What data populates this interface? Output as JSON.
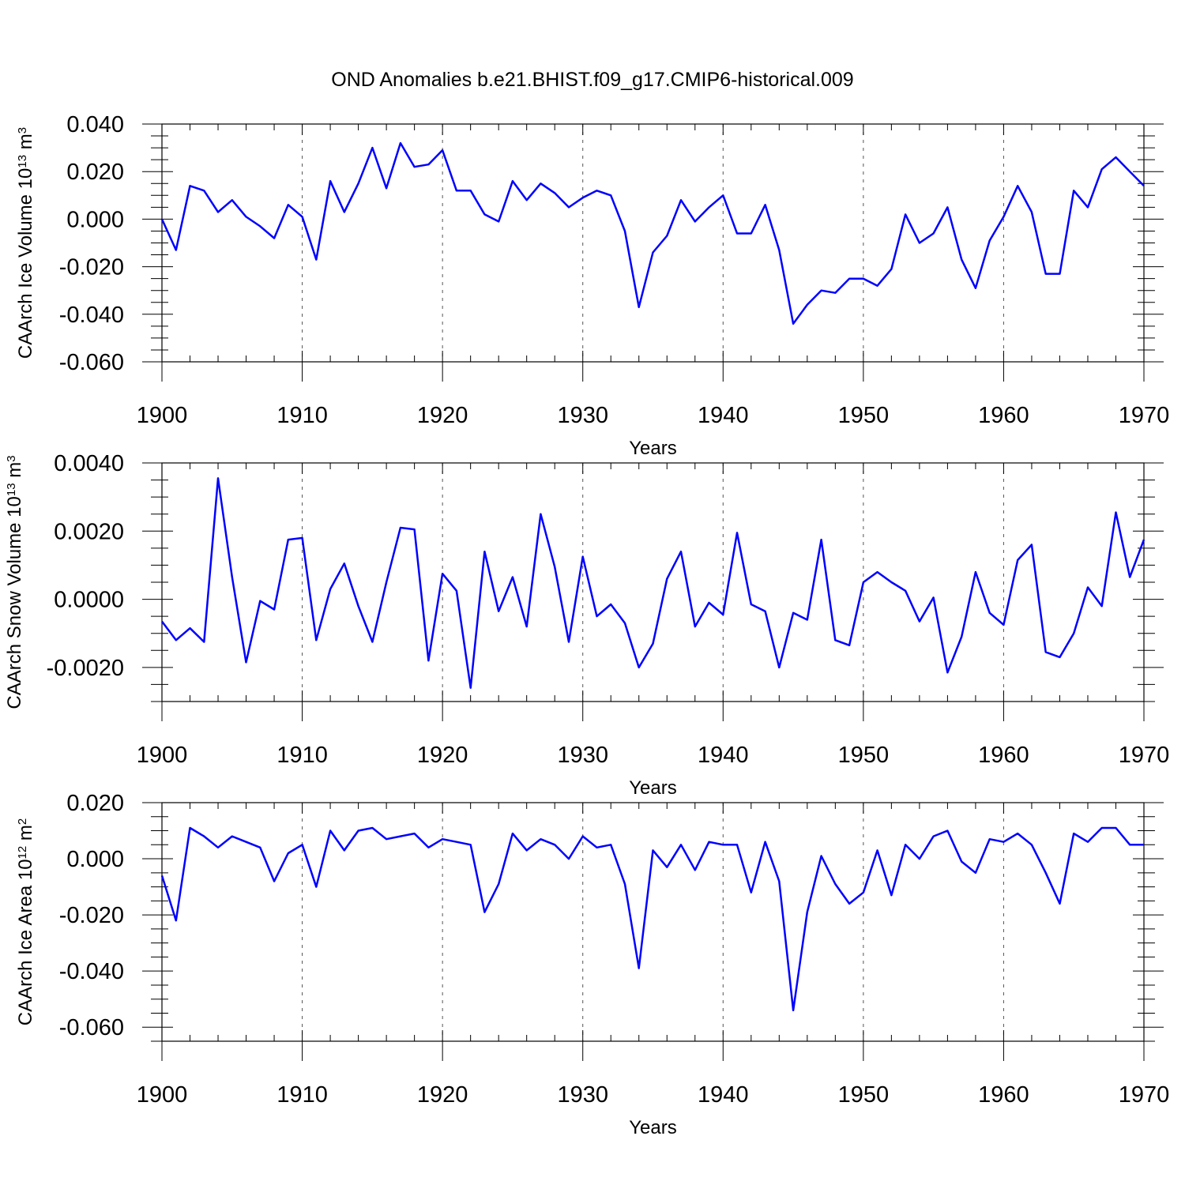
{
  "title": "OND Anomalies b.e21.BHIST.f09_g17.CMIP6-historical.009",
  "colors": {
    "series": "#0000ff",
    "frame": "#000000",
    "grid": "#555555"
  },
  "chart_data": [
    {
      "type": "line",
      "id": "ice-volume",
      "ylabel_main": "CAArch Ice Volume 10",
      "ylabel_exp": "13",
      "ylabel_unit": " m",
      "ylabel_unit_exp": "3",
      "xlabel": "Years",
      "xlim": [
        1900,
        1970
      ],
      "ylim": [
        -0.06,
        0.04
      ],
      "yticks": [
        0.04,
        0.02,
        0.0,
        -0.02,
        -0.04,
        -0.06
      ],
      "ytick_labels": [
        "0.040",
        "0.020",
        "0.000",
        "-0.020",
        "-0.040",
        "-0.060"
      ],
      "yminor_step": 0.005,
      "xticks": [
        1900,
        1910,
        1920,
        1930,
        1940,
        1950,
        1960,
        1970
      ],
      "xtick_labels": [
        "1900",
        "1910",
        "1920",
        "1930",
        "1940",
        "1950",
        "1960",
        "1970"
      ],
      "grid_x": [
        1910,
        1920,
        1930,
        1940,
        1950,
        1960
      ],
      "x_start": 1900,
      "values": [
        0.0,
        -0.013,
        0.014,
        0.012,
        0.003,
        0.008,
        0.001,
        -0.003,
        -0.008,
        0.006,
        0.001,
        -0.017,
        0.016,
        0.003,
        0.015,
        0.03,
        0.013,
        0.032,
        0.022,
        0.023,
        0.029,
        0.012,
        0.012,
        0.002,
        -0.001,
        0.016,
        0.008,
        0.015,
        0.011,
        0.005,
        0.009,
        0.012,
        0.01,
        -0.005,
        -0.037,
        -0.014,
        -0.007,
        0.008,
        -0.001,
        0.005,
        0.01,
        -0.006,
        -0.006,
        0.006,
        -0.013,
        -0.044,
        -0.036,
        -0.03,
        -0.031,
        -0.025,
        -0.025,
        -0.028,
        -0.021,
        0.002,
        -0.01,
        -0.006,
        0.005,
        -0.017,
        -0.029,
        -0.009,
        0.001,
        0.014,
        0.003,
        -0.023,
        -0.023,
        0.012,
        0.005,
        0.021,
        0.026,
        0.02,
        0.014
      ]
    },
    {
      "type": "line",
      "id": "snow-volume",
      "ylabel_main": "CAArch Snow Volume 10",
      "ylabel_exp": "13",
      "ylabel_unit": " m",
      "ylabel_unit_exp": "3",
      "xlabel": "Years",
      "xlim": [
        1900,
        1970
      ],
      "ylim": [
        -0.003,
        0.004
      ],
      "yticks": [
        0.004,
        0.002,
        0.0,
        -0.002
      ],
      "ytick_labels": [
        "0.0040",
        "0.0020",
        "0.0000",
        "-0.0020"
      ],
      "yminor_step": 0.0005,
      "xticks": [
        1900,
        1910,
        1920,
        1930,
        1940,
        1950,
        1960,
        1970
      ],
      "xtick_labels": [
        "1900",
        "1910",
        "1920",
        "1930",
        "1940",
        "1950",
        "1960",
        "1970"
      ],
      "grid_x": [
        1910,
        1920,
        1930,
        1940,
        1950,
        1960
      ],
      "x_start": 1900,
      "values": [
        -0.00065,
        -0.0012,
        -0.00085,
        -0.00125,
        0.00355,
        0.00065,
        -0.00185,
        -5e-05,
        -0.0003,
        0.00175,
        0.0018,
        -0.0012,
        0.0003,
        0.00105,
        -0.0002,
        -0.00125,
        0.0005,
        0.0021,
        0.00205,
        -0.0018,
        0.00075,
        0.00025,
        -0.0026,
        0.0014,
        -0.00035,
        0.00065,
        -0.0008,
        0.0025,
        0.00095,
        -0.00125,
        0.00125,
        -0.0005,
        -0.00015,
        -0.0007,
        -0.002,
        -0.0013,
        0.0006,
        0.0014,
        -0.0008,
        -0.0001,
        -0.00045,
        0.00195,
        -0.00015,
        -0.00035,
        -0.002,
        -0.0004,
        -0.0006,
        0.00175,
        -0.0012,
        -0.00135,
        0.0005,
        0.0008,
        0.0005,
        0.00025,
        -0.00065,
        5e-05,
        -0.00215,
        -0.0011,
        0.0008,
        -0.0004,
        -0.00075,
        0.00115,
        0.0016,
        -0.00155,
        -0.0017,
        -0.001,
        0.00035,
        -0.0002,
        0.00255,
        0.00065,
        0.00175
      ]
    },
    {
      "type": "line",
      "id": "ice-area",
      "ylabel_main": "CAArch Ice Area 10",
      "ylabel_exp": "12",
      "ylabel_unit": " m",
      "ylabel_unit_exp": "2",
      "xlabel": "Years",
      "xlim": [
        1900,
        1970
      ],
      "ylim": [
        -0.065,
        0.02
      ],
      "yticks": [
        0.02,
        0.0,
        -0.02,
        -0.04,
        -0.06
      ],
      "ytick_labels": [
        "0.020",
        "0.000",
        "-0.020",
        "-0.040",
        "-0.060"
      ],
      "yminor_step": 0.005,
      "xticks": [
        1900,
        1910,
        1920,
        1930,
        1940,
        1950,
        1960,
        1970
      ],
      "xtick_labels": [
        "1900",
        "1910",
        "1920",
        "1930",
        "1940",
        "1950",
        "1960",
        "1970"
      ],
      "grid_x": [
        1910,
        1920,
        1930,
        1940,
        1950,
        1960
      ],
      "x_start": 1900,
      "values": [
        -0.006,
        -0.022,
        0.011,
        0.008,
        0.004,
        0.008,
        0.006,
        0.004,
        -0.008,
        0.002,
        0.005,
        -0.01,
        0.01,
        0.003,
        0.01,
        0.011,
        0.007,
        0.008,
        0.009,
        0.004,
        0.007,
        0.006,
        0.005,
        -0.019,
        -0.009,
        0.009,
        0.003,
        0.007,
        0.005,
        0.0,
        0.008,
        0.004,
        0.005,
        -0.009,
        -0.039,
        0.003,
        -0.003,
        0.005,
        -0.004,
        0.006,
        0.005,
        0.005,
        -0.012,
        0.006,
        -0.008,
        -0.054,
        -0.019,
        0.001,
        -0.009,
        -0.016,
        -0.012,
        0.003,
        -0.013,
        0.005,
        0.0,
        0.008,
        0.01,
        -0.001,
        -0.005,
        0.007,
        0.006,
        0.009,
        0.005,
        -0.005,
        -0.016,
        0.009,
        0.006,
        0.011,
        0.011,
        0.005,
        0.005
      ]
    }
  ]
}
